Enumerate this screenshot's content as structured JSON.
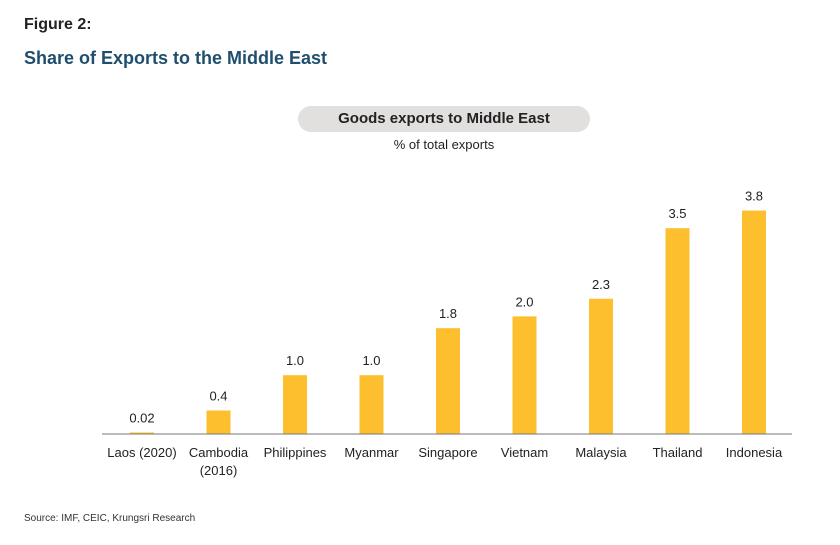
{
  "figure_label": "Figure 2:",
  "figure_title": "Share of Exports to the Middle East",
  "source": "Source: IMF, CEIC, Krungsri Research",
  "chart_data": {
    "type": "bar",
    "title": "Goods exports to Middle East",
    "subtitle": "% of total exports",
    "categories": [
      [
        "Laos (2020)"
      ],
      [
        "Cambodia",
        "(2016)"
      ],
      [
        "Philippines"
      ],
      [
        "Myanmar"
      ],
      [
        "Singapore"
      ],
      [
        "Vietnam"
      ],
      [
        "Malaysia"
      ],
      [
        "Thailand"
      ],
      [
        "Indonesia"
      ]
    ],
    "values": [
      0.02,
      0.4,
      1.0,
      1.0,
      1.8,
      2.0,
      2.3,
      3.5,
      3.8
    ],
    "data_labels": [
      "0.02",
      "0.4",
      "1.0",
      "1.0",
      "1.8",
      "2.0",
      "2.3",
      "3.5",
      "3.8"
    ],
    "ylim": [
      0,
      3.8
    ],
    "bar_color": "#fdbf2d",
    "grid": false,
    "legend": "none"
  }
}
